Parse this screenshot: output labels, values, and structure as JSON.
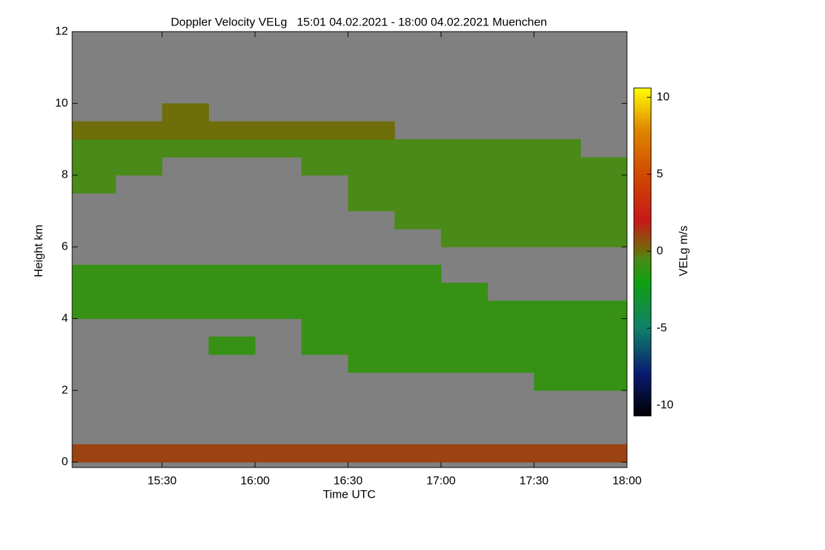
{
  "chart_data": {
    "type": "heatmap",
    "title": "Doppler Velocity VELg   15:01 04.02.2021 - 18:00 04.02.2021 Muenchen",
    "x_label": "Time UTC",
    "y_label": "Height km",
    "colorbar_label": "VELg m/s",
    "xlim": [
      15.0167,
      18.0
    ],
    "xticks": [
      {
        "value": 15.5,
        "label": "15:30"
      },
      {
        "value": 16.0,
        "label": "16:00"
      },
      {
        "value": 16.5,
        "label": "16:30"
      },
      {
        "value": 17.0,
        "label": "17:00"
      },
      {
        "value": 17.5,
        "label": "17:30"
      },
      {
        "value": 18.0,
        "label": "18:00"
      }
    ],
    "ylim": [
      -0.15,
      12
    ],
    "yticks": [
      0,
      2,
      4,
      6,
      8,
      10,
      12
    ],
    "zlim": [
      -10.7,
      10.6
    ],
    "zticks": [
      -10,
      -5,
      0,
      5,
      10
    ],
    "background_color": "#808080",
    "colormap": [
      [
        -10.7,
        "#000000"
      ],
      [
        -8,
        "#0a1a70"
      ],
      [
        -5,
        "#10806a"
      ],
      [
        -2,
        "#10a010"
      ],
      [
        -0.5,
        "#4a8a18"
      ],
      [
        0,
        "#6e6e0a"
      ],
      [
        2,
        "#c81818"
      ],
      [
        5,
        "#d04a00"
      ],
      [
        8,
        "#e08a00"
      ],
      [
        10.6,
        "#ffff00"
      ]
    ],
    "xbins": [
      15.0167,
      15.25,
      15.5,
      15.75,
      16.0,
      16.25,
      16.5,
      16.75,
      17.0,
      17.25,
      17.5,
      17.75,
      18.0
    ],
    "ybins": [
      0,
      0.5,
      1,
      1.5,
      2,
      2.5,
      3,
      3.5,
      4,
      4.5,
      5,
      5.5,
      6,
      6.5,
      7,
      7.5,
      8,
      8.5,
      9,
      9.5,
      10,
      10.5,
      11,
      11.5,
      12
    ],
    "values": [
      [
        1,
        1,
        1,
        1,
        1,
        1,
        1,
        1,
        1,
        1,
        1,
        1
      ],
      [
        null,
        null,
        null,
        null,
        null,
        null,
        null,
        null,
        null,
        null,
        null,
        null
      ],
      [
        null,
        null,
        null,
        null,
        null,
        null,
        null,
        null,
        null,
        null,
        null,
        null
      ],
      [
        null,
        null,
        null,
        null,
        null,
        null,
        null,
        null,
        null,
        null,
        null,
        null
      ],
      [
        null,
        null,
        null,
        null,
        null,
        null,
        null,
        null,
        null,
        null,
        -1,
        -1
      ],
      [
        null,
        null,
        null,
        null,
        null,
        null,
        -1,
        -1,
        -1,
        -1,
        -1,
        -1
      ],
      [
        null,
        null,
        null,
        -1,
        null,
        -1,
        -1,
        -1,
        -1,
        -1,
        -1,
        -1
      ],
      [
        null,
        null,
        null,
        null,
        null,
        -1,
        -1,
        -1,
        -1,
        -1,
        -1,
        -1
      ],
      [
        -1,
        -1,
        -1,
        -1,
        -1,
        -1,
        -1,
        -1,
        -1,
        -1,
        -1,
        -1
      ],
      [
        -1,
        -1,
        -1,
        -1,
        -1,
        -1,
        -1,
        -1,
        -1,
        null,
        null,
        null
      ],
      [
        -1,
        -1,
        -1,
        -1,
        -1,
        -1,
        -1,
        -1,
        null,
        null,
        null,
        null
      ],
      [
        null,
        null,
        null,
        null,
        null,
        null,
        null,
        null,
        null,
        null,
        null,
        null
      ],
      [
        null,
        null,
        null,
        null,
        null,
        null,
        null,
        null,
        -0.5,
        -0.5,
        -0.5,
        -0.5
      ],
      [
        null,
        null,
        null,
        null,
        null,
        null,
        null,
        -0.5,
        -0.5,
        -0.5,
        -0.5,
        -0.5
      ],
      [
        null,
        null,
        null,
        null,
        null,
        null,
        -0.5,
        -0.5,
        -0.5,
        -0.5,
        -0.5,
        -0.5
      ],
      [
        -0.5,
        null,
        null,
        null,
        null,
        null,
        -0.5,
        -0.5,
        -0.5,
        -0.5,
        -0.5,
        -0.5
      ],
      [
        -0.5,
        -0.5,
        null,
        null,
        null,
        -0.5,
        -0.5,
        -0.5,
        -0.5,
        -0.5,
        -0.5,
        -0.5
      ],
      [
        -0.5,
        -0.5,
        -0.5,
        -0.5,
        -0.5,
        -0.5,
        -0.5,
        -0.5,
        -0.5,
        -0.5,
        -0.5,
        null
      ],
      [
        0,
        0,
        0,
        0,
        0,
        0,
        0,
        null,
        null,
        null,
        null,
        null
      ],
      [
        null,
        null,
        0,
        null,
        null,
        null,
        null,
        null,
        null,
        null,
        null,
        null
      ],
      [
        null,
        null,
        null,
        null,
        null,
        null,
        null,
        null,
        null,
        null,
        null,
        null
      ],
      [
        null,
        null,
        null,
        null,
        null,
        null,
        null,
        null,
        null,
        null,
        null,
        null
      ],
      [
        null,
        null,
        null,
        null,
        null,
        null,
        null,
        null,
        null,
        null,
        null,
        null
      ],
      [
        null,
        null,
        null,
        null,
        null,
        null,
        null,
        null,
        null,
        null,
        null,
        null
      ]
    ]
  }
}
